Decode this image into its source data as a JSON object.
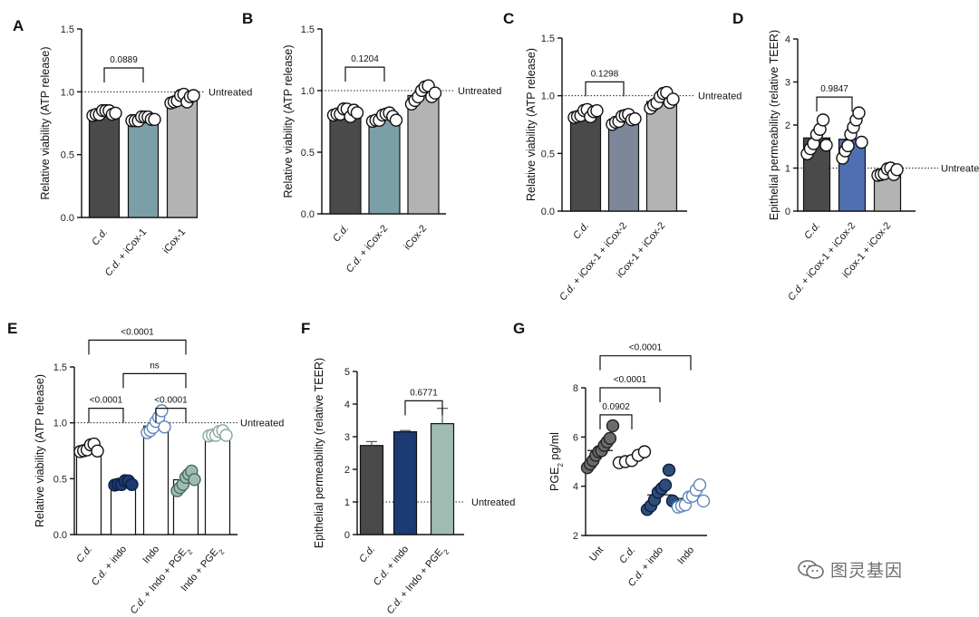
{
  "watermark": {
    "text": "图灵基因",
    "icon": "wechat-icon"
  },
  "colors": {
    "dark": "#4a4a4a",
    "teal": "#7b9fa6",
    "slate": "#7d8799",
    "lightgray": "#b3b3b3",
    "blue": "#4f6fb2",
    "navy": "#1c3b73",
    "sage": "#9fbcb2",
    "lightsage": "#a9b9b1",
    "outline_blue": "#5d86b8",
    "gray_dot": "#6b6b6b",
    "navy_dot": "#2e4d7a"
  },
  "chart_data": [
    {
      "id": "A",
      "type": "bar",
      "panel_label": "A",
      "ylabel": "Relative viability (ATP release)",
      "ylim": [
        0,
        1.5
      ],
      "yticks": [
        "0.0",
        "0.5",
        "1.0",
        "1.5"
      ],
      "reference": {
        "value": 1.0,
        "label": "Untreated"
      },
      "categories": [
        "C.d.",
        "C.d. + iCox-1",
        "iCox-1"
      ],
      "values": [
        0.83,
        0.78,
        0.94
      ],
      "bar_colors": [
        "#4a4a4a",
        "#7b9fa6",
        "#b3b3b3"
      ],
      "dot_style": [
        "open",
        "open",
        "open"
      ],
      "points": [
        [
          0.8,
          0.82,
          0.83,
          0.84,
          0.85,
          0.86,
          0.81,
          0.83
        ],
        [
          0.76,
          0.77,
          0.78,
          0.79,
          0.8,
          0.81,
          0.77,
          0.78
        ],
        [
          0.9,
          0.92,
          0.94,
          0.96,
          0.98,
          0.93,
          0.95,
          0.97
        ]
      ],
      "brackets": [
        {
          "from": 0,
          "to": 1,
          "label": "0.0889",
          "level": 1.19
        }
      ]
    },
    {
      "id": "B",
      "type": "bar",
      "panel_label": "B",
      "ylabel": "Relative viability (ATP release)",
      "ylim": [
        0,
        1.5
      ],
      "yticks": [
        "0.0",
        "0.5",
        "1.0",
        "1.5"
      ],
      "reference": {
        "value": 1.0,
        "label": "Untreated"
      },
      "categories": [
        "C.d.",
        "C.d. + iCox-2",
        "iCox-2"
      ],
      "values": [
        0.82,
        0.78,
        0.96
      ],
      "bar_colors": [
        "#4a4a4a",
        "#7b9fa6",
        "#b3b3b3"
      ],
      "dot_style": [
        "open",
        "open",
        "open"
      ],
      "points": [
        [
          0.79,
          0.81,
          0.82,
          0.84,
          0.85,
          0.8,
          0.83,
          0.82
        ],
        [
          0.74,
          0.76,
          0.77,
          0.79,
          0.81,
          0.83,
          0.78,
          0.76
        ],
        [
          0.88,
          0.92,
          0.96,
          0.99,
          1.03,
          1.05,
          0.94,
          0.98
        ]
      ],
      "brackets": [
        {
          "from": 0,
          "to": 1,
          "label": "0.1204",
          "level": 1.19
        }
      ]
    },
    {
      "id": "C",
      "type": "bar",
      "panel_label": "C",
      "ylabel": "Relative viability (ATP release)",
      "ylim": [
        0,
        1.5
      ],
      "yticks": [
        "0.0",
        "0.5",
        "1.0",
        "1.5"
      ],
      "reference": {
        "value": 1.0,
        "label": "Untreated"
      },
      "categories": [
        "C.d.",
        "C.d. + iCox-1 + iCox-2",
        "iCox-1 + iCox-2"
      ],
      "values": [
        0.84,
        0.79,
        0.95
      ],
      "bar_colors": [
        "#4a4a4a",
        "#7d8799",
        "#b3b3b3"
      ],
      "dot_style": [
        "open",
        "open",
        "open"
      ],
      "points": [
        [
          0.8,
          0.82,
          0.84,
          0.86,
          0.88,
          0.83,
          0.85,
          0.87
        ],
        [
          0.74,
          0.77,
          0.79,
          0.81,
          0.83,
          0.85,
          0.78,
          0.8
        ],
        [
          0.88,
          0.92,
          0.95,
          0.98,
          1.02,
          1.04,
          0.93,
          0.97
        ]
      ],
      "brackets": [
        {
          "from": 0,
          "to": 1,
          "label": "0.1298",
          "level": 1.12
        }
      ]
    },
    {
      "id": "D",
      "type": "bar",
      "panel_label": "D",
      "ylabel": "Epithelial permeability (relative TEER)",
      "ylim": [
        0,
        4
      ],
      "yticks": [
        "0",
        "1",
        "2",
        "3",
        "4"
      ],
      "reference": {
        "value": 1.0,
        "label": "Untreated"
      },
      "categories": [
        "C.d.",
        "C.d. + iCox-1 + iCox-2",
        "iCox-1 + iCox-2"
      ],
      "values": [
        1.7,
        1.67,
        0.9
      ],
      "bar_colors": [
        "#4a4a4a",
        "#4f6fb2",
        "#b3b3b3"
      ],
      "dot_style": [
        "open",
        "open",
        "open"
      ],
      "points": [
        [
          1.3,
          1.45,
          1.6,
          1.75,
          1.9,
          2.15,
          1.5
        ],
        [
          1.2,
          1.4,
          1.55,
          1.75,
          1.95,
          2.15,
          2.25,
          1.6
        ],
        [
          0.8,
          0.85,
          0.9,
          0.95,
          1.0,
          0.88,
          0.93
        ]
      ],
      "brackets": [
        {
          "from": 0,
          "to": 1,
          "label": "0.9847",
          "level": 2.65
        }
      ]
    },
    {
      "id": "E",
      "type": "bar",
      "panel_label": "E",
      "ylabel": "Relative viability (ATP release)",
      "ylim": [
        0,
        1.5
      ],
      "yticks": [
        "0.0",
        "0.5",
        "1.0",
        "1.5"
      ],
      "reference": {
        "value": 1.0,
        "label": "Untreated"
      },
      "categories": [
        "C.d.",
        "C.d. + indo",
        "Indo",
        "C.d. + Indo + PGE2",
        "Indo + PGE2"
      ],
      "values": [
        0.77,
        0.46,
        0.97,
        0.49,
        0.9
      ],
      "bar_colors": [
        "#ffffff",
        "#ffffff",
        "#ffffff",
        "#ffffff",
        "#ffffff"
      ],
      "dot_style": [
        "open",
        "navy",
        "outline_blue",
        "sage",
        "lightsage"
      ],
      "points": [
        [
          0.73,
          0.75,
          0.77,
          0.79,
          0.81,
          0.76
        ],
        [
          0.43,
          0.45,
          0.46,
          0.47,
          0.48,
          0.46
        ],
        [
          0.9,
          0.93,
          0.97,
          1.0,
          1.05,
          1.12,
          0.95
        ],
        [
          0.38,
          0.42,
          0.46,
          0.5,
          0.54,
          0.58,
          0.48
        ],
        [
          0.87,
          0.89,
          0.9,
          0.91,
          0.93,
          0.9
        ]
      ],
      "brackets": [
        {
          "from": 0,
          "to": 3,
          "label": "<0.0001",
          "level": 1.74
        },
        {
          "from": 1,
          "to": 3,
          "label": "ns",
          "level": 1.44
        },
        {
          "from": 0,
          "to": 1,
          "label": "<0.0001",
          "level": 1.13
        },
        {
          "from": 2,
          "to": 3,
          "label": "<0.0001",
          "level": 1.13
        }
      ]
    },
    {
      "id": "F",
      "type": "bar",
      "panel_label": "F",
      "ylabel": "Epithelial permeability (relative TEER)",
      "ylim": [
        0,
        5
      ],
      "yticks": [
        "0",
        "1",
        "2",
        "3",
        "4",
        "5"
      ],
      "reference": {
        "value": 1.0,
        "label": "Untreated"
      },
      "categories": [
        "C.d.",
        "C.d. + indo",
        "C.d. + Indo + PGE2"
      ],
      "values": [
        2.73,
        3.15,
        3.4
      ],
      "errors": [
        0.12,
        0.04,
        0.47
      ],
      "bar_colors": [
        "#4a4a4a",
        "#1c3b73",
        "#9fbcb2"
      ],
      "dot_style": [
        "none",
        "none",
        "none"
      ],
      "points": [
        [],
        [],
        []
      ],
      "brackets": [
        {
          "from": 1,
          "to": 2,
          "label": "0.6771",
          "level": 4.1
        }
      ]
    },
    {
      "id": "G",
      "type": "scatter",
      "panel_label": "G",
      "ylabel": "PGE2 pg/ml",
      "ylim": [
        2,
        8
      ],
      "yticks": [
        "2",
        "4",
        "6",
        "8"
      ],
      "categories": [
        "Unt",
        "C.d.",
        "C.d. + indo",
        "Indo"
      ],
      "dot_style": [
        "gray",
        "open",
        "navy_dot",
        "outline_blue"
      ],
      "points": [
        [
          4.7,
          4.9,
          5.1,
          5.2,
          5.4,
          5.5,
          5.6,
          5.8,
          6.0,
          6.4
        ],
        [
          4.9,
          5.0,
          5.1,
          5.2,
          5.4
        ],
        [
          3.0,
          3.2,
          3.5,
          3.7,
          3.9,
          4.1,
          4.6,
          3.4
        ],
        [
          3.1,
          3.2,
          3.3,
          3.5,
          3.6,
          3.9,
          4.0,
          3.4
        ]
      ],
      "means": [
        5.45,
        5.15,
        3.65,
        3.5
      ],
      "brackets": [
        {
          "from": 0,
          "to": 3,
          "label": "<0.0001",
          "level": 9.3
        },
        {
          "from": 0,
          "to": 2,
          "label": "<0.0001",
          "level": 8.0
        },
        {
          "from": 0,
          "to": 1,
          "label": "0.0902",
          "level": 6.9
        }
      ]
    }
  ]
}
